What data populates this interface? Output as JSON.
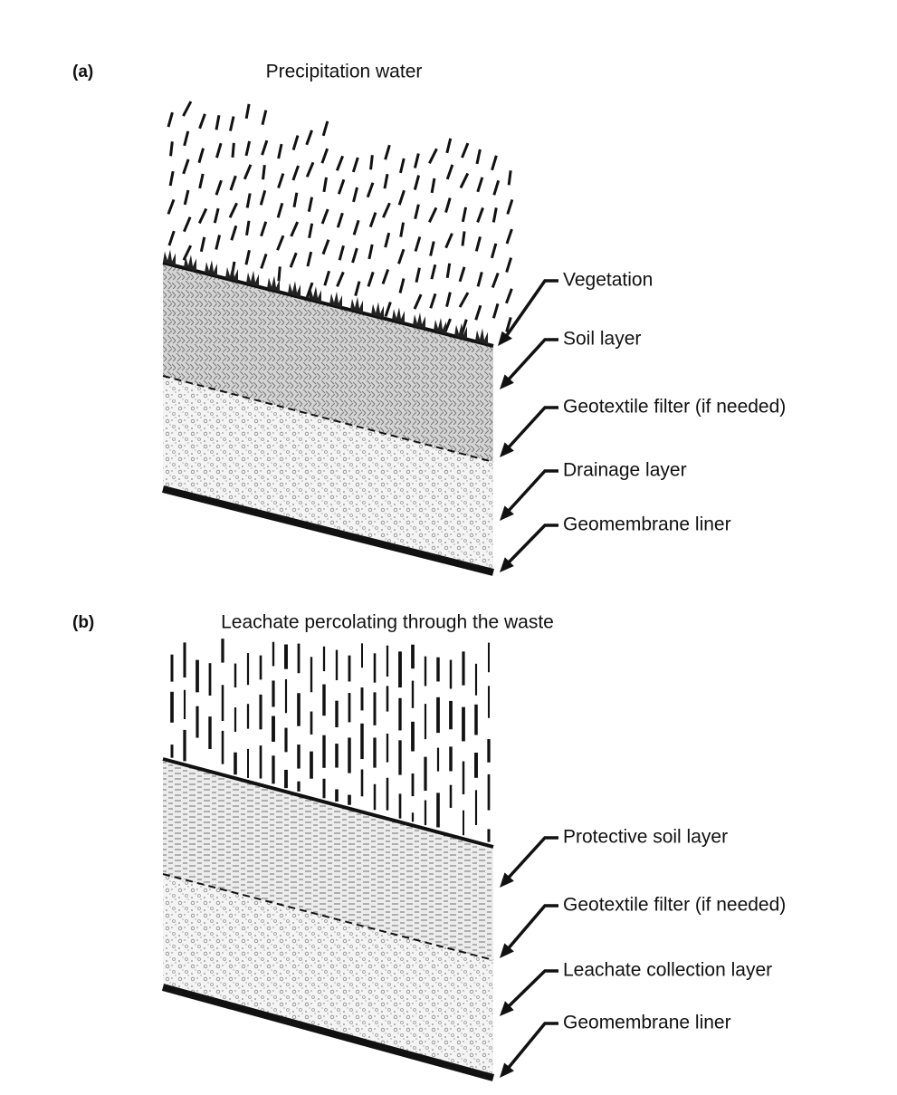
{
  "panels": [
    {
      "label": "(a)",
      "title": "Precipitation water",
      "layers": [
        "Vegetation",
        "Soil layer",
        "Geotextile filter (if needed)",
        "Drainage layer",
        "Geomembrane liner"
      ]
    },
    {
      "label": "(b)",
      "title": "Leachate percolating through the waste",
      "layers": [
        "Protective soil layer",
        "Geotextile filter (if needed)",
        "Leachate collection layer",
        "Geomembrane liner"
      ]
    }
  ]
}
